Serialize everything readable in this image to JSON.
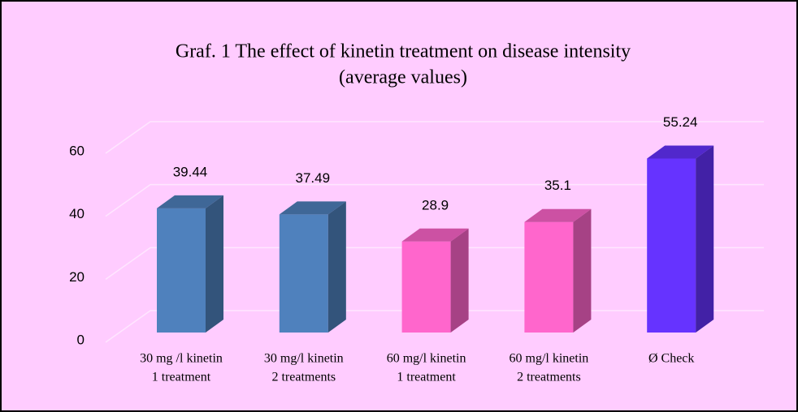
{
  "chart_data": {
    "type": "bar3d",
    "title": [
      "Graf. 1 The effect of kinetin treatment on disease intensity",
      "(average values)"
    ],
    "categories": [
      [
        "30 mg /l kinetin",
        "1 treatment"
      ],
      [
        "30 mg/l kinetin",
        "2 treatments"
      ],
      [
        "60 mg/l kinetin",
        "1 treatment"
      ],
      [
        "60 mg/l kinetin",
        "2 treatments"
      ],
      [
        "Ø Check"
      ]
    ],
    "values": [
      39.44,
      37.49,
      28.9,
      35.1,
      55.24
    ],
    "colors": [
      "#4f81bd",
      "#4f81bd",
      "#ff66cc",
      "#ff66cc",
      "#6633ff"
    ],
    "ylim": [
      0,
      60
    ],
    "yticks": [
      0,
      20,
      40,
      60
    ],
    "grid": true
  }
}
